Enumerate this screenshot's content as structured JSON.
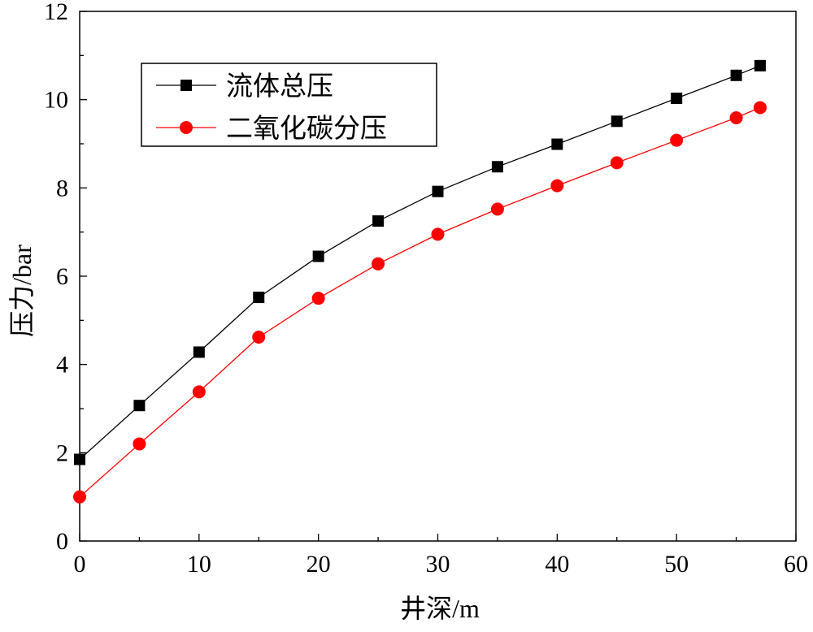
{
  "chart_data": {
    "type": "line",
    "xlabel": "井深/m",
    "ylabel": "压力/bar",
    "xlim": [
      0,
      60
    ],
    "ylim": [
      0,
      12
    ],
    "x_ticks": [
      "0",
      "10",
      "20",
      "30",
      "40",
      "50",
      "60"
    ],
    "y_ticks": [
      "0",
      "2",
      "4",
      "6",
      "8",
      "10",
      "12"
    ],
    "x": [
      0,
      5,
      10,
      15,
      20,
      25,
      30,
      35,
      40,
      45,
      50,
      55,
      57
    ],
    "series": [
      {
        "name": "流体总压",
        "color": "#000000",
        "marker": "square",
        "values": [
          1.85,
          3.07,
          4.28,
          5.52,
          6.45,
          7.25,
          7.92,
          8.48,
          8.99,
          9.51,
          10.03,
          10.55,
          10.77
        ]
      },
      {
        "name": "二氧化碳分压",
        "color": "#ff0000",
        "marker": "circle",
        "values": [
          1.0,
          2.2,
          3.38,
          4.62,
          5.5,
          6.28,
          6.95,
          7.52,
          8.05,
          8.57,
          9.08,
          9.59,
          9.82
        ]
      }
    ],
    "grid": false,
    "legend_position": "top-left"
  }
}
